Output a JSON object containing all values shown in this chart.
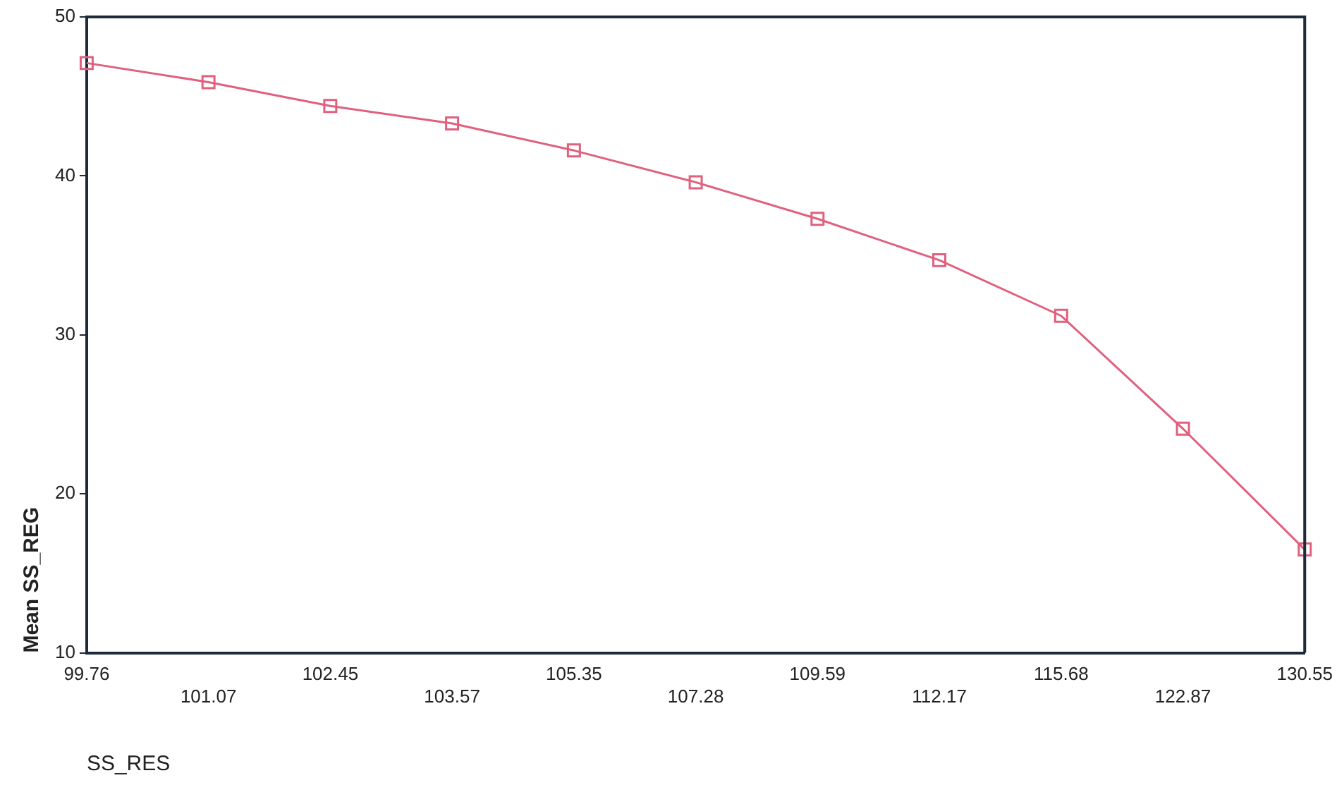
{
  "chart_data": {
    "type": "line",
    "xlabel": "SS_RES",
    "ylabel": "Mean SS_REG",
    "categories": [
      "99.76",
      "101.07",
      "102.45",
      "103.57",
      "105.35",
      "107.28",
      "109.59",
      "112.17",
      "115.68",
      "122.87",
      "130.55"
    ],
    "series": [
      {
        "color": "#e0607e",
        "values": [
          47.1,
          45.9,
          44.4,
          43.3,
          41.6,
          39.6,
          37.3,
          34.7,
          31.2,
          24.1,
          16.5
        ]
      }
    ],
    "ylim": [
      10,
      50
    ],
    "yticks": [
      10,
      20,
      30,
      40,
      50
    ],
    "grid": false,
    "legend": false,
    "marker": "square",
    "line_style": "solid"
  }
}
